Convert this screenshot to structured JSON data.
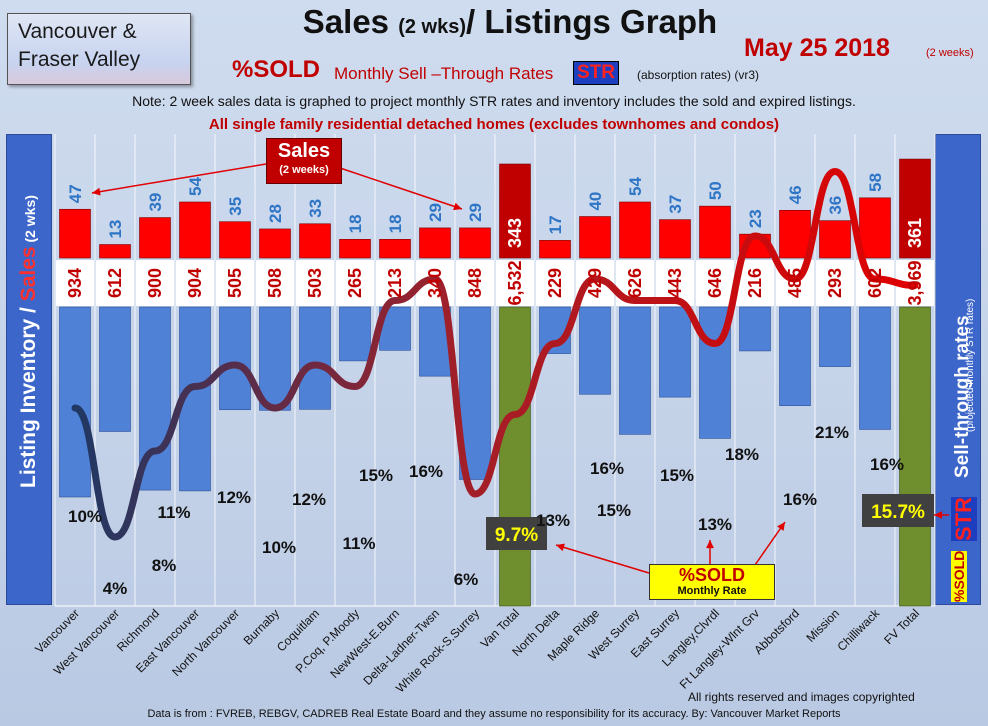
{
  "region": {
    "line1": "Vancouver &",
    "line2": "Fraser Valley"
  },
  "title": {
    "main1": "Sales ",
    "small": "(2 wks)",
    "main2": "/ Listings Graph"
  },
  "date": {
    "main": "May 25 2018",
    "sub": "(2 weeks)"
  },
  "subtitle": {
    "sold": "%SOLD",
    "rest": " Monthly Sell –Through Rates",
    "str": "STR",
    "absorb": "(absorption rates) (vr3)"
  },
  "note": "Note: 2 week sales data is graphed to project monthly STR rates and inventory includes the sold and expired listings.",
  "single_family": "All single family residential detached homes (excludes townhomes and condos)",
  "left_axis": {
    "part1": "Listing Inventory / ",
    "part2": "Sales",
    "part3": " (2 wks)"
  },
  "right_axis": {
    "label": "Sell-through rates",
    "sub": "(projected monthly STR rates)",
    "str": "STR",
    "sold": "%SOLD"
  },
  "sales_callout": {
    "big": "Sales",
    "small": "(2 weeks)"
  },
  "sold_callout": {
    "big": "%SOLD",
    "small": "Monthly Rate"
  },
  "footer": {
    "rights": "All rights reserved and  images copyrighted",
    "source": "Data is from : FVREB, REBGV, CADREB Real Estate Board and they assume no responsibility for its accuracy. By: Vancouver Market Reports"
  },
  "colors": {
    "sales": "#ff0000",
    "inventory": "#4f81d6",
    "total_sales": "#c00000",
    "total_inventory": "#6f8f2f",
    "str_low": "#1f3864",
    "str_high": "#e00000"
  },
  "chart_data": {
    "type": "bar",
    "categories": [
      "Vancouver",
      "West Vancouver",
      "Richmond",
      "East Vancouver",
      "North Vancouver",
      "Burnaby",
      "Coquitlam",
      "P.Coq, P.Moody",
      "NewWest-E.Burn",
      "Delta-Ladner-Twsn",
      "White Rock-S.Surrey",
      "Van Total",
      "North Delta",
      "Maple Ridge",
      "West Surrey",
      "East Surrey",
      "Langley,Clvrdl",
      "Ft Langley-Wlnt Grv",
      "Abbotsford",
      "Mission",
      "Chilliwack",
      "FV Total"
    ],
    "series": [
      {
        "name": "Sales",
        "values": [
          47,
          13,
          39,
          54,
          35,
          28,
          33,
          18,
          18,
          29,
          29,
          343,
          17,
          40,
          54,
          37,
          50,
          23,
          46,
          36,
          58,
          361
        ]
      },
      {
        "name": "Listing Inventory",
        "values": [
          934,
          612,
          900,
          904,
          505,
          508,
          503,
          265,
          213,
          340,
          848,
          6532,
          229,
          429,
          626,
          443,
          646,
          216,
          485,
          293,
          602,
          3969
        ]
      },
      {
        "name": "%SOLD",
        "values": [
          10,
          4,
          8,
          11,
          12,
          10,
          12,
          11,
          15,
          16,
          6,
          9.7,
          13,
          16,
          15,
          15,
          13,
          18,
          16,
          21,
          16,
          15.7
        ]
      }
    ],
    "sales_labels": [
      "47",
      "13",
      "39",
      "54",
      "35",
      "28",
      "33",
      "18",
      "18",
      "29",
      "29",
      "343",
      "17",
      "40",
      "54",
      "37",
      "50",
      "23",
      "46",
      "36",
      "58",
      "361"
    ],
    "inventory_labels": [
      "934",
      "612",
      "900",
      "904",
      "505",
      "508",
      "503",
      "265",
      "213",
      "340",
      "848",
      "6,532",
      "229",
      "429",
      "626",
      "443",
      "646",
      "216",
      "485",
      "293",
      "602",
      "3,969"
    ],
    "str_labels": [
      "10%",
      "4%",
      "8%",
      "11%",
      "12%",
      "10%",
      "12%",
      "11%",
      "15%",
      "16%",
      "6%",
      "9.7%",
      "13%",
      "16%",
      "15%",
      "15%",
      "13%",
      "18%",
      "16%",
      "21%",
      "16%",
      "15.7%"
    ],
    "grid": true
  }
}
